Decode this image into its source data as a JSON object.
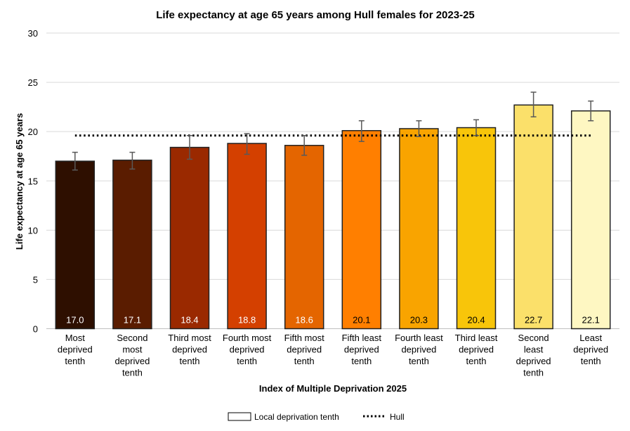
{
  "chart_data": {
    "type": "bar",
    "title": "Life expectancy at age 65 years among Hull females for 2023-25",
    "xlabel": "Index of Multiple Deprivation 2025",
    "ylabel": "Life expectancy at age 65 years",
    "ylim": [
      0,
      30
    ],
    "yticks": [
      0,
      5,
      10,
      15,
      20,
      25,
      30
    ],
    "grid": true,
    "categories": [
      [
        "Most",
        "deprived",
        "tenth"
      ],
      [
        "Second",
        "most",
        "deprived",
        "tenth"
      ],
      [
        "Third most",
        "deprived",
        "tenth"
      ],
      [
        "Fourth most",
        "deprived",
        "tenth"
      ],
      [
        "Fifth most",
        "deprived",
        "tenth"
      ],
      [
        "Fifth least",
        "deprived",
        "tenth"
      ],
      [
        "Fourth least",
        "deprived",
        "tenth"
      ],
      [
        "Third least",
        "deprived",
        "tenth"
      ],
      [
        "Second",
        "least",
        "deprived",
        "tenth"
      ],
      [
        "Least",
        "deprived",
        "tenth"
      ]
    ],
    "series": [
      {
        "name": "Local deprivation tenth",
        "values": [
          17.0,
          17.1,
          18.4,
          18.8,
          18.6,
          20.1,
          20.3,
          20.4,
          22.7,
          22.1
        ],
        "labels": [
          "17.0",
          "17.1",
          "18.4",
          "18.8",
          "18.6",
          "20.1",
          "20.3",
          "20.4",
          "22.7",
          "22.1"
        ],
        "ci_lower": [
          16.1,
          16.2,
          17.2,
          17.7,
          17.6,
          19.0,
          19.5,
          19.6,
          21.5,
          21.1
        ],
        "ci_upper": [
          17.9,
          17.9,
          19.6,
          19.8,
          19.6,
          21.1,
          21.1,
          21.2,
          24.0,
          23.1
        ],
        "colors": [
          "#2e0f00",
          "#5a1c00",
          "#9a2900",
          "#d44000",
          "#e46500",
          "#ff7f00",
          "#f9a400",
          "#f8c50a",
          "#fbe06a",
          "#fef7c2"
        ],
        "label_colors": [
          "#ffffff",
          "#ffffff",
          "#ffffff",
          "#ffffff",
          "#ffffff",
          "#000000",
          "#000000",
          "#000000",
          "#000000",
          "#000000"
        ]
      },
      {
        "name": "Hull",
        "type": "line",
        "style": "dotted",
        "value": 19.6,
        "color": "#000000"
      }
    ],
    "legend_position": "bottom"
  }
}
